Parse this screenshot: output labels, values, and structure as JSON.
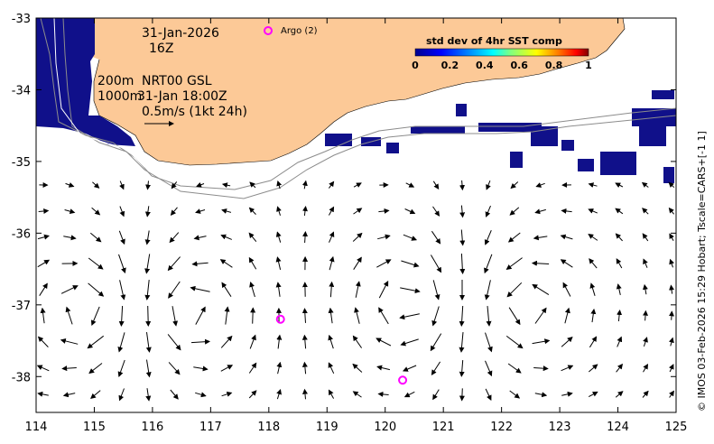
{
  "map": {
    "date_line1": "31-Jan-2026",
    "date_line2": "16Z",
    "isobath_line1": "200m",
    "isobath_line2": "1000m",
    "product_line1": "NRT00 GSL",
    "product_line2": "31-Jan 18:00Z",
    "scale_text": "0.5m/s (1kt 24h)",
    "argo_legend": "Argo (2)",
    "credit": "© IMOS 03-Feb-2026 15:29 Hobart; Tscale=CARS+[-1 1]",
    "lon_range": [
      114,
      125
    ],
    "lat_range": [
      -38.5,
      -33
    ],
    "x_ticks": [
      "114",
      "115",
      "116",
      "117",
      "118",
      "119",
      "120",
      "121",
      "122",
      "123",
      "124",
      "125"
    ],
    "y_ticks": [
      "-33",
      "-34",
      "-35",
      "-36",
      "-37",
      "-38"
    ],
    "argo_floats": [
      {
        "lon": 118.2,
        "lat": -37.2
      },
      {
        "lon": 120.3,
        "lat": -38.05
      }
    ],
    "colors": {
      "land": "#fcc997",
      "argo": "#ff00ff",
      "sst_low": "#10108a",
      "contour": "#8c8c8c"
    }
  },
  "colorbar": {
    "title": "std dev of 4hr SST comp",
    "ticks": [
      "0",
      "0.2",
      "0.4",
      "0.6",
      "0.8",
      "1"
    ],
    "colors": [
      "#00008f",
      "#0000ff",
      "#0080ff",
      "#00ffff",
      "#80ff80",
      "#ffff00",
      "#ff8000",
      "#ff0000",
      "#800000"
    ]
  }
}
